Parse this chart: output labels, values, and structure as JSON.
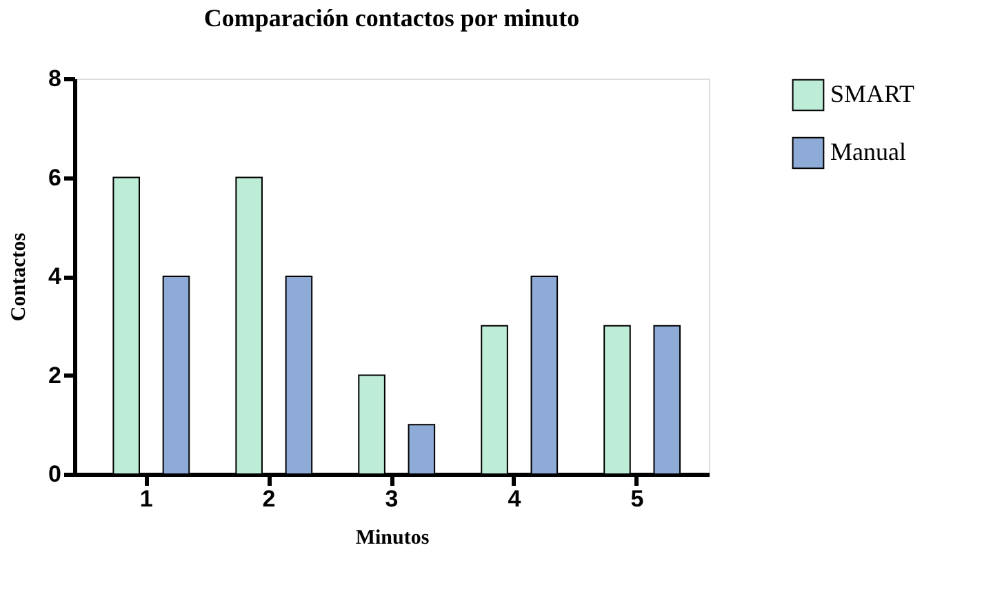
{
  "chart_data": {
    "type": "bar",
    "title": "Comparación contactos por minuto",
    "xlabel": "Minutos",
    "ylabel": "Contactos",
    "categories": [
      "1",
      "2",
      "3",
      "4",
      "5"
    ],
    "series": [
      {
        "name": "SMART",
        "color": "#bdecd7",
        "values": [
          6,
          6,
          2,
          3,
          3
        ]
      },
      {
        "name": "Manual",
        "color": "#8eaad6",
        "values": [
          4,
          4,
          1,
          4,
          3
        ]
      }
    ],
    "ylim": [
      0,
      8
    ],
    "yticks": [
      0,
      2,
      4,
      6,
      8
    ],
    "grid": false,
    "legend": "top right"
  }
}
